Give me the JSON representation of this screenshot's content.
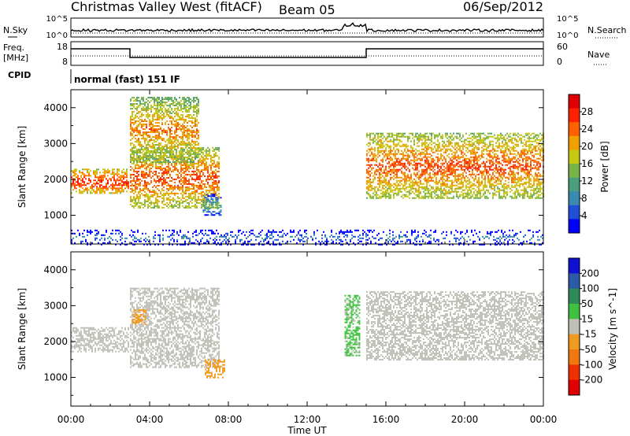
{
  "header": {
    "station": "Christmas Valley West (fitACF)",
    "beam": "Beam 05",
    "date": "06/Sep/2012"
  },
  "noise_panel": {
    "left_label": "N.Sky",
    "right_label": "N.Search",
    "left_ticks": [
      "10^5",
      "10^0"
    ],
    "right_ticks": [
      "10^5",
      "10^0"
    ]
  },
  "freq_panel": {
    "left_label_1": "Freq.",
    "left_label_2": "[MHz]",
    "left_ticks": [
      "18",
      "8"
    ],
    "right_label": "Nave",
    "right_ticks": [
      "60",
      "0"
    ],
    "cpid_label": "CPID",
    "mode_text": "normal (fast) 151 IF"
  },
  "x_axis": {
    "label": "Time UT",
    "ticks": [
      "00:00",
      "04:00",
      "08:00",
      "12:00",
      "16:00",
      "20:00",
      "00:00"
    ]
  },
  "chart_data": [
    {
      "type": "heatmap",
      "title": "Power",
      "ylabel": "Slant Range [km]",
      "xlabel": "Time UT",
      "y_ticks": [
        "1000",
        "2000",
        "3000",
        "4000"
      ],
      "ylim": [
        200,
        4500
      ],
      "xlim_hours": [
        0,
        24
      ],
      "colorbar": {
        "label": "Power [dB]",
        "ticks": [
          "4",
          "8",
          "12",
          "16",
          "20",
          "24",
          "28"
        ],
        "range": [
          0,
          30
        ],
        "colors": [
          "#0000ff",
          "#1e4fd6",
          "#3a8ab0",
          "#4aa07c",
          "#78b44a",
          "#c8c814",
          "#f0a000",
          "#ff6000",
          "#ff2000",
          "#e00000"
        ]
      },
      "echo_regions": [
        {
          "name": "morning band",
          "start_h": 0.0,
          "end_h": 2.9,
          "range_km": [
            1600,
            2300
          ],
          "power_db": 26
        },
        {
          "name": "rising arc lower",
          "start_h": 3.0,
          "end_h": 7.5,
          "range_km": [
            1200,
            2900
          ],
          "power_db": 24
        },
        {
          "name": "rising arc upper",
          "start_h": 3.0,
          "end_h": 6.5,
          "range_km": [
            2500,
            4300
          ],
          "power_db": 22
        },
        {
          "name": "small patch",
          "start_h": 6.7,
          "end_h": 7.6,
          "range_km": [
            1000,
            1600
          ],
          "power_db": 12
        },
        {
          "name": "evening band",
          "start_h": 15.0,
          "end_h": 24.0,
          "range_km": [
            1500,
            3300
          ],
          "power_db": 24
        },
        {
          "name": "ground scatter near range",
          "start_h": 0.0,
          "end_h": 24.0,
          "range_km": [
            200,
            600
          ],
          "power_db": 8
        }
      ]
    },
    {
      "type": "heatmap",
      "title": "Velocity",
      "ylabel": "Slant Range [km]",
      "xlabel": "Time UT",
      "y_ticks": [
        "1000",
        "2000",
        "3000",
        "4000"
      ],
      "ylim": [
        200,
        4500
      ],
      "xlim_hours": [
        0,
        24
      ],
      "colorbar": {
        "label": "Velocity [m s^-1]",
        "ticks": [
          "200",
          "100",
          "50",
          "15",
          "-15",
          "-50",
          "-100",
          "-200"
        ],
        "range": [
          -250,
          250
        ],
        "colors": [
          "#1010d0",
          "#2a5aa8",
          "#2f8a5a",
          "#40c040",
          "#c0c0b8",
          "#f09a20",
          "#f07810",
          "#f03000",
          "#e00000"
        ]
      },
      "echo_regions": [
        {
          "name": "morning ground scatter",
          "start_h": 0.0,
          "end_h": 2.9,
          "range_km": [
            1700,
            2400
          ],
          "velocity": 0
        },
        {
          "name": "arc ground scatter",
          "start_h": 3.0,
          "end_h": 7.5,
          "range_km": [
            1300,
            3500
          ],
          "velocity": 0
        },
        {
          "name": "orange patch early",
          "start_h": 3.1,
          "end_h": 3.8,
          "range_km": [
            2500,
            2900
          ],
          "velocity": -60
        },
        {
          "name": "orange patch late",
          "start_h": 6.8,
          "end_h": 7.8,
          "range_km": [
            1000,
            1500
          ],
          "velocity": -60
        },
        {
          "name": "green streak",
          "start_h": 13.9,
          "end_h": 14.7,
          "range_km": [
            1600,
            3300
          ],
          "velocity": 40
        },
        {
          "name": "evening ground scatter",
          "start_h": 15.0,
          "end_h": 24.0,
          "range_km": [
            1500,
            3400
          ],
          "velocity": 0
        }
      ]
    }
  ]
}
